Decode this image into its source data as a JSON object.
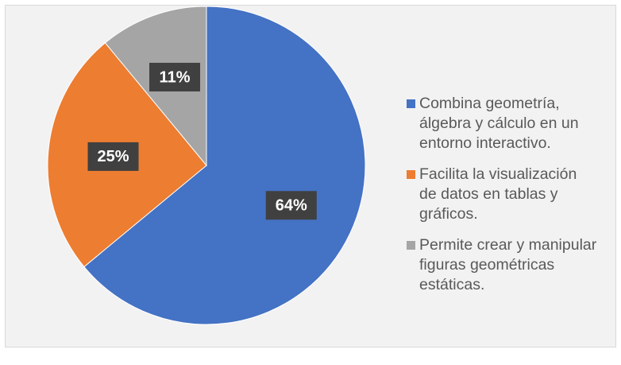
{
  "chart_data": {
    "type": "pie",
    "categories": [
      "Combina geometría, álgebra y cálculo en un entorno interactivo.",
      "Facilita la visualización de datos en tablas y gráficos.",
      "Permite crear y manipular figuras geométricas estáticas."
    ],
    "values": [
      64,
      25,
      11
    ],
    "value_labels": [
      "64%",
      "25%",
      "11%"
    ],
    "colors": [
      "#4472c4",
      "#ed7d31",
      "#a5a5a5"
    ],
    "legend": "right"
  }
}
